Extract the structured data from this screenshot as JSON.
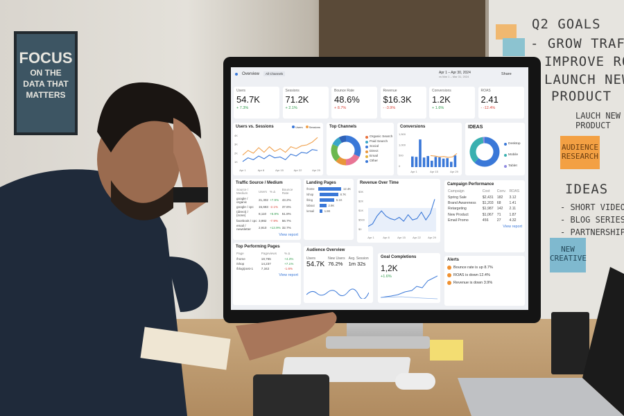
{
  "poster": {
    "line1": "FOCUS",
    "line2": "ON THE",
    "line3": "DATA THAT",
    "line4": "MATTERS"
  },
  "whiteboard": {
    "title": "Q2 GOALS",
    "goals": [
      "- GROW TRAFFIC",
      "IMPROVE ROAS",
      "LAUNCH NEW",
      "PRODUCT"
    ],
    "note": "LAUCH NEW PRODUCT",
    "sticky_orange": "AUDIENCE RESEARCH",
    "ideas_title": "IDEAS",
    "ideas": [
      "- SHORT VIDEOS",
      "- BLOG SERIES",
      "- PARTNERSHIPS"
    ],
    "sticky_blue": "NEW CREATIVE"
  },
  "dashboard": {
    "header": {
      "title": "Overview",
      "filter": "All Channels",
      "date_range": "Apr 1 – Apr 30, 2024",
      "compare": "vs Mar 1 – Mar 31, 2024",
      "share": "Share"
    },
    "kpis": [
      {
        "label": "Users",
        "value": "54.7K",
        "delta": "+ 7.3%",
        "dir": "up"
      },
      {
        "label": "Sessions",
        "value": "71.2K",
        "delta": "+ 2.1%",
        "dir": "up"
      },
      {
        "label": "Bounce Rate",
        "value": "48.6%",
        "delta": "+ 8.7%",
        "dir": "down"
      },
      {
        "label": "Revenue",
        "value": "$16.3K",
        "delta": "- -3.9%",
        "dir": "down"
      },
      {
        "label": "Conversions",
        "value": "1.2K",
        "delta": "+ 1.6%",
        "dir": "up"
      },
      {
        "label": "ROAS",
        "value": "2.41",
        "delta": "- -12.4%",
        "dir": "down"
      }
    ],
    "users_sessions": {
      "title": "Users vs. Sessions",
      "legend": [
        "Users",
        "Sessions"
      ],
      "yticks": [
        "4K",
        "3K",
        "2K",
        "1K"
      ],
      "xticks": [
        "Apr 1",
        "Apr 8",
        "Apr 15",
        "Apr 22",
        "Apr 29"
      ],
      "users": [
        1.3,
        1.7,
        1.5,
        1.9,
        1.6,
        2.0,
        1.7,
        1.8,
        1.5,
        2.1,
        1.9,
        2.3,
        2.2,
        2.6,
        2.5
      ],
      "sessions": [
        2.0,
        2.5,
        2.2,
        2.8,
        2.3,
        2.9,
        2.4,
        2.7,
        2.3,
        2.9,
        2.7,
        3.0,
        3.1,
        3.4,
        3.9
      ]
    },
    "top_channels": {
      "title": "Top Channels",
      "items": [
        "Organic Search",
        "Paid Search",
        "Social",
        "Direct",
        "Email",
        "Other"
      ],
      "colors": [
        "#e8703a",
        "#3aa6c9",
        "#3a78d8",
        "#e8963a",
        "#e3b23c",
        "#3a78d8"
      ],
      "shares": [
        32,
        18,
        12,
        20,
        10,
        8
      ]
    },
    "conversions": {
      "title": "Conversions",
      "yticks": [
        "1,500",
        "1,000",
        "500",
        "0"
      ],
      "xticks": [
        "Apr 1",
        "Apr 15",
        "Apr 29"
      ],
      "bars": [
        500,
        480,
        1300,
        450,
        520,
        300,
        480,
        460,
        400,
        420,
        250,
        550
      ]
    },
    "ideas_card": {
      "title": "IDEAS",
      "legend": [
        "Desktop",
        "Mobile",
        "Tablet"
      ],
      "colors": [
        "#3a78d8",
        "#3ab0b0",
        "#8f8ae0"
      ],
      "shares": [
        62,
        36,
        2
      ]
    },
    "traffic": {
      "title": "Traffic Source / Medium",
      "headers": [
        "Source / Medium",
        "Users",
        "% Δ",
        "Bounce Rate"
      ],
      "rows": [
        [
          "google / organic",
          "21,302",
          "+7.9%",
          "43.2%"
        ],
        [
          "google / cpc",
          "15,683",
          "-2.1%",
          "37.6%"
        ],
        [
          "(direct) / (none)",
          "8,110",
          "+5.8%",
          "51.8%"
        ],
        [
          "facebook / cpc",
          "3,982",
          "-7.9%",
          "56.7%"
        ],
        [
          "email / newsletter",
          "2,910",
          "+12.9%",
          "32.7%"
        ]
      ],
      "link": "View report"
    },
    "landing": {
      "title": "Landing Pages",
      "rows": [
        [
          "/home",
          "12.4K",
          100
        ],
        [
          "/shop",
          "8.7K",
          70
        ],
        [
          "/blog",
          "5.1K",
          55
        ],
        [
          "/about",
          "2.9K",
          25
        ],
        [
          "/email",
          "1.8K",
          10
        ]
      ]
    },
    "revenue": {
      "title": "Revenue Over Time",
      "yticks": [
        "$3K",
        "$2K",
        "$1K",
        "$500",
        "$0"
      ],
      "xticks": [
        "Apr 1",
        "Apr 8",
        "Apr 15",
        "Apr 22",
        "Apr 29"
      ],
      "values": [
        0.4,
        0.6,
        1.2,
        1.6,
        1.2,
        1.0,
        0.9,
        1.1,
        0.8,
        1.3,
        0.9,
        1.0,
        1.5,
        0.9,
        1.4,
        2.5
      ]
    },
    "campaigns": {
      "title": "Campaign Performance",
      "headers": [
        "Campaign",
        "Cost",
        "Conv.",
        "ROAS"
      ],
      "rows": [
        [
          "Spring Sale",
          "$2,431",
          "182",
          "3.12"
        ],
        [
          "Brand Awareness",
          "$1,203",
          "68",
          "1.41"
        ],
        [
          "Retargeting",
          "$1,987",
          "142",
          "2.11"
        ],
        [
          "New Product",
          "$1,067",
          "71",
          "1.87"
        ],
        [
          "Email Promo",
          "456",
          "27",
          "4.32"
        ]
      ],
      "link": "View report"
    },
    "top_pages": {
      "title": "Top Performing Pages",
      "headers": [
        "Page",
        "Pageviews",
        "% Δ"
      ],
      "rows": [
        [
          "/home",
          "18,765",
          "+4.3%"
        ],
        [
          "/shop",
          "14,237",
          "+7.1%"
        ],
        [
          "/blog/post-1",
          "7,342",
          "-1.6%"
        ]
      ],
      "link": "View report"
    },
    "audience": {
      "title": "Audience Overview",
      "metrics": [
        {
          "label": "Users",
          "value": "54.7K"
        },
        {
          "label": "New Users",
          "value": "76.2%"
        },
        {
          "label": "Avg. Session",
          "value": "1m 32s"
        }
      ]
    },
    "goals": {
      "title": "Goal Completions",
      "value": "1,2K",
      "delta": "+1.6%"
    },
    "alerts": {
      "title": "Alerts",
      "items": [
        "Bounce rate is up 8.7%",
        "ROAS is down 12.4%",
        "Revenue is down 3.9%"
      ]
    }
  }
}
